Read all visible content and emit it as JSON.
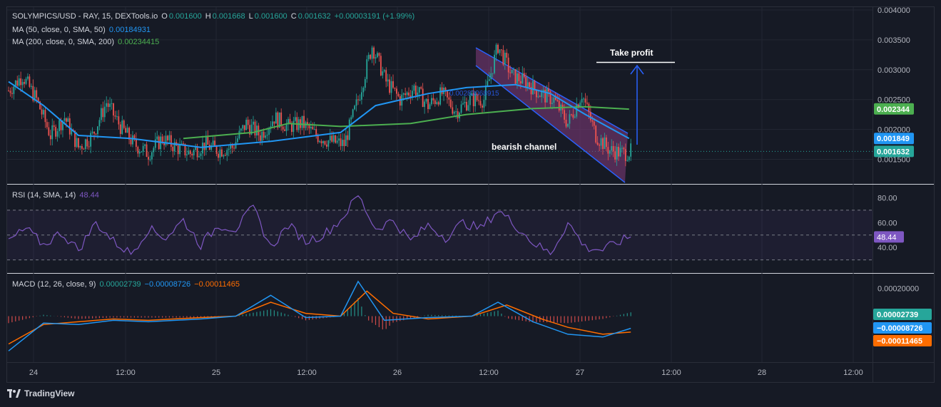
{
  "header": {
    "symbol_line": "SOLYMPICS/USD - RAY, 15, DEXTools.io",
    "o_label": "O",
    "o_value": "0.001600",
    "h_label": "H",
    "h_value": "0.001668",
    "l_label": "L",
    "l_value": "0.001600",
    "c_label": "C",
    "c_value": "0.001632",
    "change": "+0.00003191 (+1.99%)",
    "ma50_label": "MA (50, close, 0, SMA, 50)",
    "ma50_value": "0.00184931",
    "ma200_label": "MA (200, close, 0, SMA, 200)",
    "ma200_value": "0.00234415"
  },
  "price_axis": {
    "ticks": [
      "0.004000",
      "0.003500",
      "0.003000",
      "0.002500",
      "0.002000",
      "0.001500"
    ],
    "badges": {
      "ma200": "0.002344",
      "ma50": "0.001849",
      "price": "0.001632"
    }
  },
  "annotations": {
    "take_profit": "Take profit",
    "bearish_channel": "bearish channel",
    "overlay_text": "0.00283068915"
  },
  "rsi": {
    "label": "RSI (14, SMA, 14)",
    "value": "48.44",
    "ticks": [
      "80.00",
      "60.00",
      "40.00"
    ],
    "badge": "48.44"
  },
  "macd": {
    "label": "MACD (12, 26, close, 9)",
    "v1": "0.00002739",
    "v2": "−0.00008726",
    "v3": "−0.00011465",
    "tick": "0.00020000",
    "badges": [
      "0.00002739",
      "−0.00008726",
      "−0.00011465"
    ]
  },
  "time_axis": [
    "24",
    "12:00",
    "25",
    "12:00",
    "26",
    "12:00",
    "27",
    "12:00",
    "28",
    "12:00"
  ],
  "footer": {
    "brand": "TradingView"
  },
  "colors": {
    "bg": "#161a25",
    "up": "#26a69a",
    "down": "#ef5350",
    "ma50": "#2196f3",
    "ma200": "#4caf50",
    "rsi": "#7e57c2",
    "macd_line": "#2196f3",
    "signal_line": "#ff6d00",
    "channel_fill": "#b2283f"
  },
  "chart_data": {
    "type": "candlestick",
    "title": "SOLYMPICS/USD - RAY, 15, DEXTools.io",
    "x_labels": [
      "24",
      "12:00",
      "25",
      "12:00",
      "26",
      "12:00",
      "27",
      "12:00",
      "28",
      "12:00"
    ],
    "y_range": [
      0.0011,
      0.004
    ],
    "close_path": [
      [
        0,
        0.00265
      ],
      [
        8,
        0.0029
      ],
      [
        16,
        0.0025
      ],
      [
        24,
        0.0019
      ],
      [
        32,
        0.0022
      ],
      [
        40,
        0.0017
      ],
      [
        48,
        0.0019
      ],
      [
        56,
        0.00245
      ],
      [
        64,
        0.00205
      ],
      [
        72,
        0.00175
      ],
      [
        80,
        0.0016
      ],
      [
        88,
        0.00185
      ],
      [
        96,
        0.0017
      ],
      [
        104,
        0.0016
      ],
      [
        112,
        0.00175
      ],
      [
        120,
        0.00165
      ],
      [
        128,
        0.0017
      ],
      [
        136,
        0.0021
      ],
      [
        144,
        0.0019
      ],
      [
        152,
        0.0022
      ],
      [
        160,
        0.00205
      ],
      [
        168,
        0.0021
      ],
      [
        176,
        0.0019
      ],
      [
        184,
        0.0018
      ],
      [
        192,
        0.00175
      ],
      [
        200,
        0.0025
      ],
      [
        208,
        0.0034
      ],
      [
        216,
        0.0028
      ],
      [
        224,
        0.0025
      ],
      [
        232,
        0.0027
      ],
      [
        240,
        0.0024
      ],
      [
        248,
        0.0026
      ],
      [
        256,
        0.0023
      ],
      [
        264,
        0.0025
      ],
      [
        272,
        0.0025
      ],
      [
        280,
        0.0034
      ],
      [
        288,
        0.0029
      ],
      [
        296,
        0.0028
      ],
      [
        304,
        0.0026
      ],
      [
        312,
        0.0025
      ],
      [
        320,
        0.0021
      ],
      [
        328,
        0.0026
      ],
      [
        336,
        0.0019
      ],
      [
        344,
        0.00165
      ],
      [
        352,
        0.0016
      ],
      [
        356,
        0.00163
      ]
    ],
    "ma50_path": [
      [
        0,
        0.0028
      ],
      [
        20,
        0.0024
      ],
      [
        40,
        0.0019
      ],
      [
        70,
        0.00185
      ],
      [
        110,
        0.0017
      ],
      [
        150,
        0.0018
      ],
      [
        190,
        0.00195
      ],
      [
        210,
        0.0024
      ],
      [
        240,
        0.0026
      ],
      [
        262,
        0.0027
      ],
      [
        290,
        0.00275
      ],
      [
        310,
        0.0026
      ],
      [
        330,
        0.00225
      ],
      [
        355,
        0.00185
      ]
    ],
    "ma200_path": [
      [
        100,
        0.00185
      ],
      [
        140,
        0.00195
      ],
      [
        160,
        0.0021
      ],
      [
        190,
        0.00205
      ],
      [
        230,
        0.0021
      ],
      [
        262,
        0.00225
      ],
      [
        300,
        0.00235
      ],
      [
        330,
        0.00238
      ],
      [
        355,
        0.00234
      ]
    ],
    "rsi_path": [
      [
        0,
        45
      ],
      [
        10,
        55
      ],
      [
        20,
        42
      ],
      [
        30,
        52
      ],
      [
        40,
        38
      ],
      [
        50,
        60
      ],
      [
        60,
        45
      ],
      [
        70,
        35
      ],
      [
        80,
        55
      ],
      [
        90,
        48
      ],
      [
        100,
        62
      ],
      [
        110,
        42
      ],
      [
        120,
        58
      ],
      [
        130,
        55
      ],
      [
        140,
        72
      ],
      [
        150,
        40
      ],
      [
        160,
        58
      ],
      [
        170,
        45
      ],
      [
        180,
        50
      ],
      [
        190,
        62
      ],
      [
        200,
        82
      ],
      [
        210,
        55
      ],
      [
        220,
        62
      ],
      [
        230,
        45
      ],
      [
        240,
        58
      ],
      [
        250,
        48
      ],
      [
        260,
        60
      ],
      [
        270,
        55
      ],
      [
        280,
        70
      ],
      [
        290,
        58
      ],
      [
        300,
        44
      ],
      [
        310,
        35
      ],
      [
        320,
        60
      ],
      [
        330,
        40
      ],
      [
        340,
        38
      ],
      [
        350,
        45
      ],
      [
        356,
        48.44
      ]
    ],
    "macd_path": [
      [
        0,
        -0.00025
      ],
      [
        20,
        -5e-05
      ],
      [
        40,
        -6e-05
      ],
      [
        60,
        -3e-05
      ],
      [
        80,
        -4e-05
      ],
      [
        110,
        -2e-05
      ],
      [
        130,
        0.0
      ],
      [
        150,
        0.00015
      ],
      [
        170,
        -1e-05
      ],
      [
        190,
        0.0
      ],
      [
        200,
        0.00025
      ],
      [
        215,
        -3e-05
      ],
      [
        240,
        -1e-05
      ],
      [
        265,
        0.0
      ],
      [
        280,
        0.0001
      ],
      [
        300,
        -4e-05
      ],
      [
        320,
        -0.00013
      ],
      [
        340,
        -0.00015
      ],
      [
        356,
        -8.726e-05
      ]
    ],
    "signal_path": [
      [
        0,
        -0.0002
      ],
      [
        20,
        -6e-05
      ],
      [
        40,
        -4e-05
      ],
      [
        60,
        -2e-05
      ],
      [
        80,
        -3e-05
      ],
      [
        110,
        -1e-05
      ],
      [
        130,
        0.0
      ],
      [
        150,
        0.0001
      ],
      [
        170,
        2e-05
      ],
      [
        190,
        0.0
      ],
      [
        205,
        0.00018
      ],
      [
        220,
        2e-05
      ],
      [
        240,
        -2e-05
      ],
      [
        265,
        0.0
      ],
      [
        285,
        8e-05
      ],
      [
        305,
        -2e-05
      ],
      [
        320,
        -8e-05
      ],
      [
        340,
        -0.00013
      ],
      [
        356,
        -0.00011465
      ]
    ],
    "macd_range": [
      -0.00032,
      0.0003
    ]
  }
}
